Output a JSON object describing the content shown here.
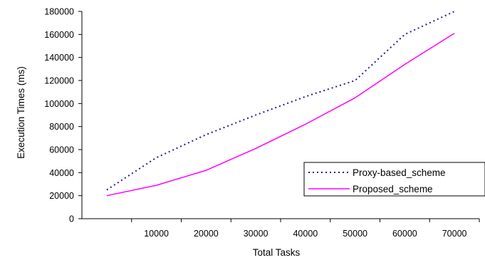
{
  "chart_data": {
    "type": "line",
    "xlabel": "Total Tasks",
    "ylabel": "Execution Times (ms)",
    "x": [
      0,
      10000,
      20000,
      30000,
      40000,
      50000,
      60000,
      70000
    ],
    "x_tick_labels": [
      "10000",
      "20000",
      "30000",
      "40000",
      "50000",
      "60000",
      "70000"
    ],
    "y_tick_labels": [
      "0",
      "20000",
      "40000",
      "60000",
      "80000",
      "100000",
      "120000",
      "140000",
      "160000",
      "180000"
    ],
    "ylim": [
      0,
      180000
    ],
    "grid": false,
    "legend_position": "bottom-right",
    "series": [
      {
        "name": "Proxy-based_scheme",
        "color": "#1f1f8f",
        "style": "dotted",
        "values": [
          25000,
          53000,
          73000,
          90000,
          106000,
          120000,
          160000,
          180000
        ]
      },
      {
        "name": "Proposed_scheme",
        "color": "#ff00ff",
        "style": "solid",
        "values": [
          20000,
          29000,
          42000,
          61000,
          82000,
          105000,
          134000,
          161000
        ]
      }
    ]
  }
}
